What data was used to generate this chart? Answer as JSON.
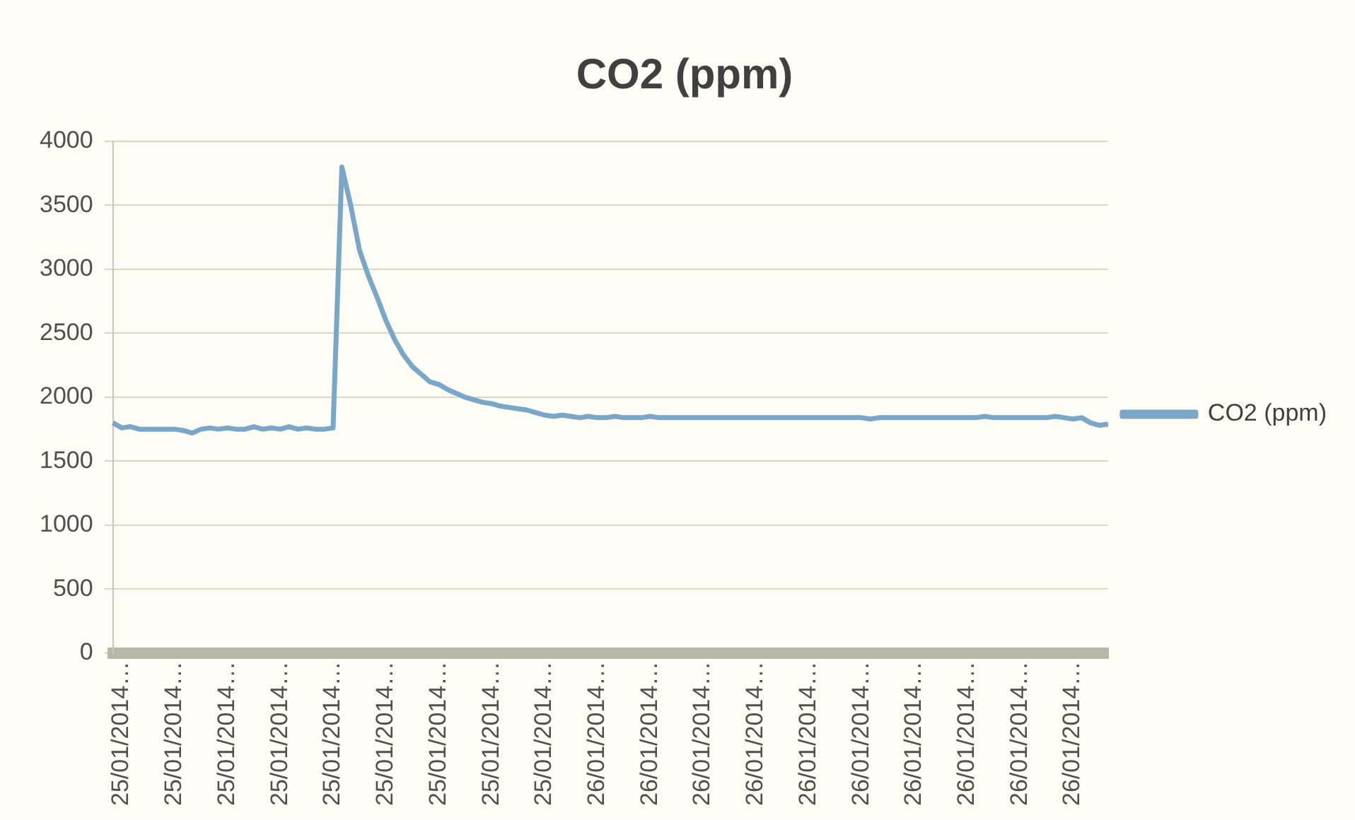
{
  "chart_data": {
    "type": "line",
    "title": "CO2 (ppm)",
    "categories": [
      null,
      "25/01/2014…",
      null,
      null,
      null,
      null,
      null,
      "25/01/2014…",
      null,
      null,
      null,
      null,
      null,
      "25/01/2014…",
      null,
      null,
      null,
      null,
      null,
      "25/01/2014…",
      null,
      null,
      null,
      null,
      null,
      "25/01/2014…",
      null,
      null,
      null,
      null,
      null,
      "25/01/2014…",
      null,
      null,
      null,
      null,
      null,
      "25/01/2014…",
      null,
      null,
      null,
      null,
      null,
      "25/01/2014…",
      null,
      null,
      null,
      null,
      null,
      "25/01/2014…",
      null,
      null,
      null,
      null,
      null,
      "26/01/2014…",
      null,
      null,
      null,
      null,
      null,
      "26/01/2014…",
      null,
      null,
      null,
      null,
      null,
      "26/01/2014…",
      null,
      null,
      null,
      null,
      null,
      "26/01/2014…",
      null,
      null,
      null,
      null,
      null,
      "26/01/2014…",
      null,
      null,
      null,
      null,
      null,
      "26/01/2014…",
      null,
      null,
      null,
      null,
      null,
      "26/01/2014…",
      null,
      null,
      null,
      null,
      null,
      "26/01/2014…",
      null,
      null,
      null,
      null,
      null,
      "26/01/2014…",
      null,
      null,
      null,
      null,
      null,
      "26/01/2014…",
      null,
      null,
      null,
      null
    ],
    "series": [
      {
        "name": "CO2 (ppm)",
        "color": "#7aa7c7",
        "values": [
          1800,
          1760,
          1770,
          1750,
          1750,
          1750,
          1750,
          1750,
          1740,
          1720,
          1750,
          1760,
          1750,
          1760,
          1750,
          1750,
          1770,
          1750,
          1760,
          1750,
          1770,
          1750,
          1760,
          1750,
          1750,
          1760,
          3800,
          3500,
          3150,
          2950,
          2780,
          2600,
          2450,
          2330,
          2240,
          2180,
          2120,
          2100,
          2060,
          2030,
          2000,
          1980,
          1960,
          1950,
          1930,
          1920,
          1910,
          1900,
          1880,
          1860,
          1850,
          1860,
          1850,
          1840,
          1850,
          1840,
          1840,
          1850,
          1840,
          1840,
          1840,
          1850,
          1840,
          1840,
          1840,
          1840,
          1840,
          1840,
          1840,
          1840,
          1840,
          1840,
          1840,
          1840,
          1840,
          1840,
          1840,
          1840,
          1840,
          1840,
          1840,
          1840,
          1840,
          1840,
          1840,
          1840,
          1830,
          1840,
          1840,
          1840,
          1840,
          1840,
          1840,
          1840,
          1840,
          1840,
          1840,
          1840,
          1840,
          1850,
          1840,
          1840,
          1840,
          1840,
          1840,
          1840,
          1840,
          1850,
          1840,
          1830,
          1840,
          1800,
          1780,
          1790
        ]
      }
    ],
    "ylim": [
      0,
      4000
    ],
    "yticks": [
      0,
      500,
      1000,
      1500,
      2000,
      2500,
      3000,
      3500,
      4000
    ],
    "grid": "y",
    "legend": "right",
    "marker": "none",
    "line_style": "solid"
  }
}
